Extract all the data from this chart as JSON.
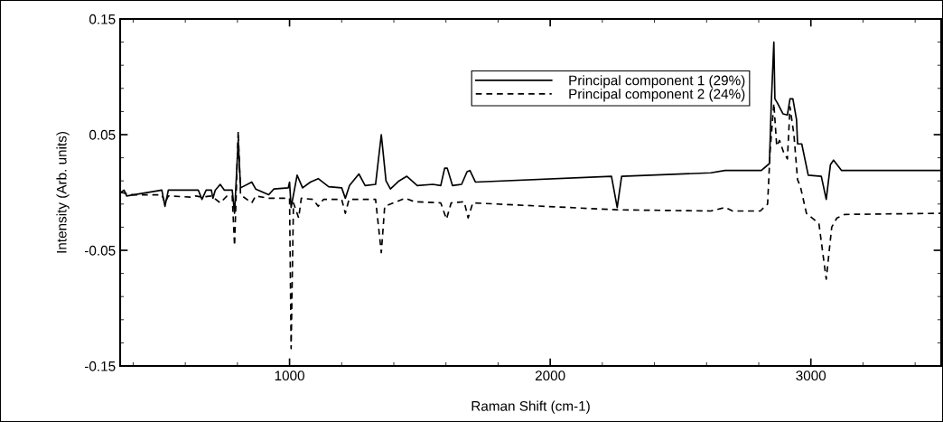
{
  "chart_data": {
    "type": "line",
    "xlabel": "Raman Shift (cm-1)",
    "ylabel": "Intensity (Arb. units)",
    "xlim": [
      350,
      3500
    ],
    "xticks": [
      1000,
      2000,
      3000
    ],
    "ylim": [
      -0.15,
      0.15
    ],
    "yticks": [
      0.15,
      0.05,
      {
        "value": -0.05,
        "label": "-0.05"
      },
      {
        "value": -0.15,
        "label": "-0.15"
      }
    ],
    "grid": false,
    "legend": "top right",
    "series": [
      {
        "name": "Principal component 1 (29%)",
        "color": "#000000",
        "line_style": "solid",
        "x": [
          353,
          365,
          375,
          510,
          522,
          535,
          650,
          664,
          680,
          700,
          706,
          715,
          734,
          750,
          780,
          789,
          803,
          812,
          855,
          870,
          920,
          940,
          995,
          1000,
          1006,
          1029,
          1050,
          1080,
          1110,
          1150,
          1200,
          1214,
          1230,
          1266,
          1290,
          1330,
          1352,
          1370,
          1387,
          1420,
          1450,
          1490,
          1550,
          1580,
          1595,
          1605,
          1625,
          1660,
          1681,
          1692,
          1713,
          2235,
          2257,
          2274,
          2616,
          2671,
          2810,
          2841,
          2848,
          2858,
          2862,
          2870,
          2893,
          2910,
          2920,
          2931,
          2945,
          2949,
          2965,
          2990,
          3040,
          3059,
          3075,
          3087,
          3118,
          3500
        ],
        "values": [
          0.0,
          0.002,
          -0.003,
          0.002,
          -0.012,
          0.002,
          0.002,
          -0.006,
          0.002,
          0.002,
          -0.005,
          0.002,
          0.007,
          0.002,
          0.002,
          -0.018,
          0.045,
          0.004,
          0.009,
          0.003,
          -0.002,
          0.003,
          0.004,
          0.009,
          -0.013,
          0.015,
          0.004,
          0.009,
          0.012,
          0.005,
          0.004,
          -0.005,
          0.006,
          0.016,
          0.006,
          0.007,
          0.05,
          0.01,
          0.003,
          0.01,
          0.014,
          0.006,
          0.007,
          0.006,
          0.021,
          0.021,
          0.006,
          0.007,
          0.018,
          0.019,
          0.009,
          0.014,
          -0.013,
          0.014,
          0.017,
          0.019,
          0.019,
          0.025,
          0.076,
          0.13,
          0.081,
          0.078,
          0.068,
          0.067,
          0.081,
          0.081,
          0.063,
          0.042,
          0.042,
          0.015,
          0.014,
          -0.006,
          0.024,
          0.028,
          0.019,
          0.019
        ]
      },
      {
        "name": "Principal component 2 (24%)",
        "color": "#000000",
        "line_style": "dashed",
        "x": [
          353,
          400,
          510,
          522,
          535,
          619,
          640,
          664,
          700,
          734,
          760,
          780,
          789,
          803,
          812,
          855,
          870,
          920,
          1000,
          1006,
          1015,
          1035,
          1045,
          1090,
          1110,
          1130,
          1200,
          1214,
          1228,
          1330,
          1352,
          1365,
          1443,
          1480,
          1580,
          1602,
          1620,
          1670,
          1685,
          1703,
          2257,
          2616,
          2671,
          2700,
          2806,
          2834,
          2844,
          2858,
          2869,
          2880,
          2895,
          2910,
          2920,
          2935,
          2949,
          2960,
          2983,
          3031,
          3059,
          3080,
          3100,
          3130,
          3500
        ],
        "values": [
          -0.0,
          -0.002,
          -0.002,
          -0.009,
          -0.003,
          -0.004,
          -0.003,
          -0.004,
          -0.003,
          -0.009,
          -0.003,
          -0.003,
          -0.046,
          0.053,
          -0.002,
          -0.009,
          -0.003,
          -0.005,
          -0.005,
          -0.135,
          -0.009,
          -0.022,
          -0.005,
          -0.006,
          -0.012,
          -0.006,
          -0.006,
          -0.018,
          -0.006,
          -0.006,
          -0.052,
          -0.012,
          -0.005,
          -0.008,
          -0.009,
          -0.023,
          -0.009,
          -0.008,
          -0.022,
          -0.009,
          -0.015,
          -0.016,
          -0.013,
          -0.016,
          -0.016,
          -0.01,
          0.037,
          0.077,
          0.04,
          0.045,
          0.035,
          0.029,
          0.074,
          0.05,
          0.011,
          0.005,
          -0.018,
          -0.027,
          -0.075,
          -0.03,
          -0.022,
          -0.019,
          -0.018
        ]
      }
    ]
  }
}
